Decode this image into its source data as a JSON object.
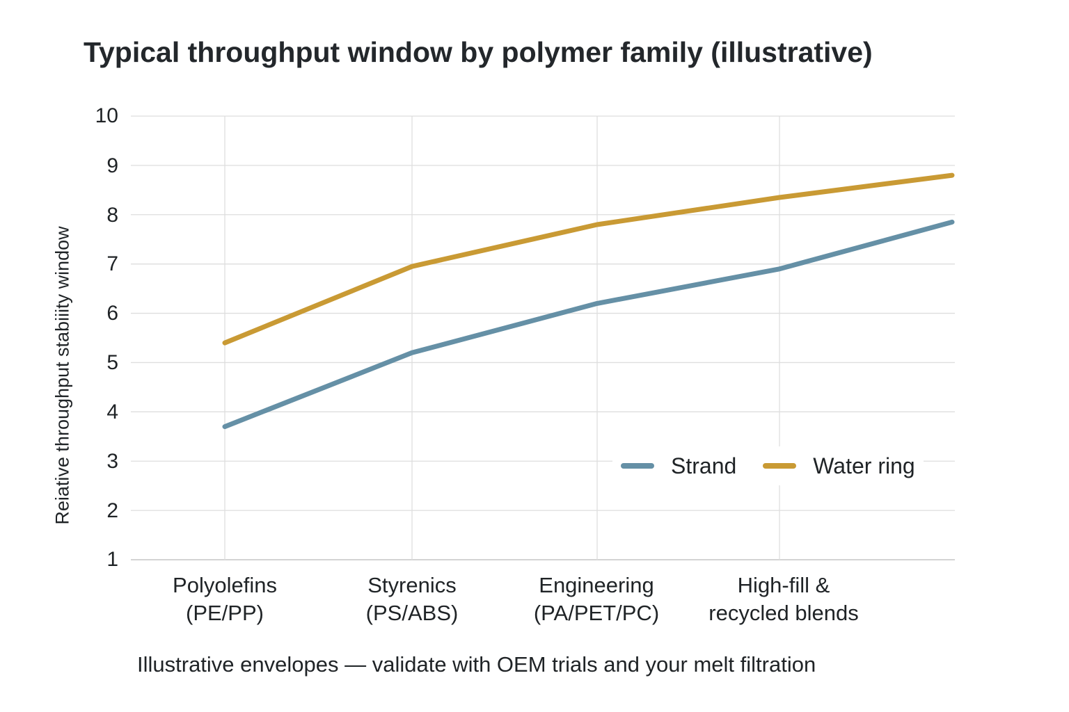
{
  "title": "Typical throughput window by polymer family (illustrative)",
  "note": "Illustrative envelopes — validate with OEM trials and your melt filtration",
  "colors": {
    "strand": "#6590a6",
    "water_ring": "#c99a34",
    "grid": "#dedede",
    "text": "#1f2326"
  },
  "axes": {
    "ylabel": "Reiative throughput stabiiity window",
    "yticks": [
      "10",
      "9",
      "8",
      "7",
      "6",
      "5",
      "4",
      "3",
      "2",
      "1"
    ],
    "xticks": [
      {
        "line1": "Polyolefins",
        "line2": "(PE/PP)"
      },
      {
        "line1": "Styrenics",
        "line2": "(PS/ABS)"
      },
      {
        "line1": "Engineering",
        "line2": "(PA/PET/PC)"
      },
      {
        "line1": "High-fill &",
        "line2": "recycled blends"
      }
    ]
  },
  "legend": [
    {
      "label": "Strand",
      "color": "#6590a6"
    },
    {
      "label": "Water ring",
      "color": "#c99a34"
    }
  ],
  "chart_data": {
    "type": "line",
    "title": "Typical throughput window by polymer family (illustrative)",
    "xlabel": "",
    "ylabel": "Reiative throughput stabiiity window",
    "categories": [
      "Polyolefins (PE/PP)",
      "Styrenics (PS/ABS)",
      "Engineering (PA/PET/PC)",
      "High-fill & recycled blends",
      ""
    ],
    "series": [
      {
        "name": "Strand",
        "color": "#6590a6",
        "values": [
          3.7,
          5.2,
          6.2,
          6.9,
          7.85
        ]
      },
      {
        "name": "Water ring",
        "color": "#c99a34",
        "values": [
          5.4,
          6.95,
          7.8,
          8.35,
          8.8
        ]
      }
    ],
    "ylim": [
      1,
      10
    ],
    "yticks": [
      1,
      2,
      3,
      4,
      5,
      6,
      7,
      8,
      9,
      10
    ],
    "grid": true,
    "legend_position": "lower right (inside plot)",
    "annotations": [
      "Illustrative envelopes — validate with OEM trials and your melt filtration"
    ]
  }
}
